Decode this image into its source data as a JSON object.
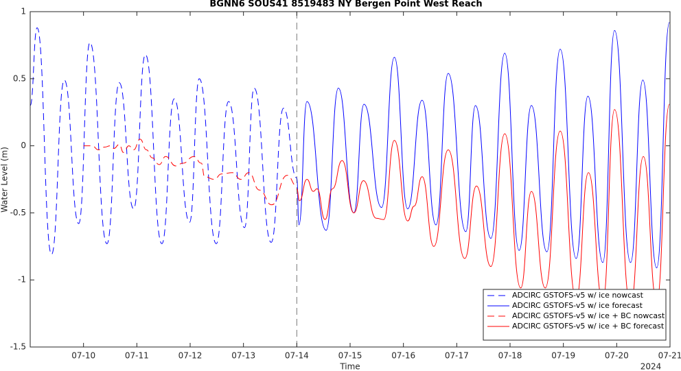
{
  "chart_data": {
    "type": "line",
    "title": "BGNN6 SOUS41 8519483 NY Bergen Point West Reach",
    "xlabel": "Time",
    "ylabel": "Water Level (m)",
    "x_annotation": "2024",
    "xlim": [
      9,
      21
    ],
    "ylim": [
      -1.5,
      1
    ],
    "xticks": [
      {
        "value": 10,
        "label": "07-10"
      },
      {
        "value": 11,
        "label": "07-11"
      },
      {
        "value": 12,
        "label": "07-12"
      },
      {
        "value": 13,
        "label": "07-13"
      },
      {
        "value": 14,
        "label": "07-14"
      },
      {
        "value": 15,
        "label": "07-15"
      },
      {
        "value": 16,
        "label": "07-16"
      },
      {
        "value": 17,
        "label": "07-17"
      },
      {
        "value": 18,
        "label": "07-18"
      },
      {
        "value": 19,
        "label": "07-19"
      },
      {
        "value": 20,
        "label": "07-20"
      },
      {
        "value": 21,
        "label": "07-21"
      }
    ],
    "yticks": [
      -1.5,
      -1,
      -0.5,
      0,
      0.5,
      1
    ],
    "vline_x": 14,
    "legend": "lower right",
    "grid": false,
    "series": [
      {
        "name": "ADCIRC GSTOFS-v5 w/ ice nowcast",
        "color": "#0000ff",
        "dashed": true,
        "x": [
          9.0,
          9.13,
          9.4,
          9.64,
          9.91,
          10.12,
          10.44,
          10.67,
          10.94,
          11.16,
          11.47,
          11.7,
          11.99,
          12.17,
          12.49,
          12.72,
          13.02,
          13.2,
          13.52,
          13.75,
          14.0
        ],
        "values": [
          0.3,
          0.88,
          -0.81,
          0.49,
          -0.58,
          0.77,
          -0.73,
          0.47,
          -0.47,
          0.68,
          -0.73,
          0.35,
          -0.57,
          0.5,
          -0.73,
          0.33,
          -0.61,
          0.43,
          -0.72,
          0.28,
          -0.24
        ]
      },
      {
        "name": "ADCIRC GSTOFS-v5 w/ ice forecast",
        "color": "#0000ff",
        "dashed": false,
        "x": [
          14.0,
          14.04,
          14.19,
          14.55,
          14.78,
          15.07,
          15.26,
          15.59,
          15.83,
          16.08,
          16.35,
          16.61,
          16.84,
          17.17,
          17.35,
          17.64,
          17.9,
          18.17,
          18.4,
          18.69,
          18.94,
          19.24,
          19.46,
          19.74,
          19.96,
          20.26,
          20.49,
          20.75,
          20.99
        ],
        "values": [
          -0.24,
          -0.59,
          0.33,
          -0.63,
          0.43,
          -0.5,
          0.31,
          -0.46,
          0.66,
          -0.47,
          0.34,
          -0.59,
          0.54,
          -0.64,
          0.3,
          -0.69,
          0.69,
          -0.78,
          0.3,
          -0.79,
          0.72,
          -0.84,
          0.37,
          -0.87,
          0.86,
          -0.87,
          0.49,
          -0.91,
          0.92
        ]
      },
      {
        "name": "ADCIRC GSTOFS-v5 w/ ice + BC nowcast",
        "color": "#ff0000",
        "dashed": true,
        "x": [
          10.0,
          10.16,
          10.28,
          10.39,
          10.51,
          10.57,
          10.67,
          10.75,
          10.85,
          10.94,
          11.06,
          11.18,
          11.29,
          11.42,
          11.54,
          11.73,
          11.86,
          12.07,
          12.21,
          12.27,
          12.45,
          12.59,
          12.79,
          12.95,
          13.1,
          13.3,
          13.53,
          13.82,
          14.0
        ],
        "values": [
          0,
          0,
          -0.03,
          -0.01,
          0,
          -0.02,
          0.01,
          -0.05,
          0,
          -0.03,
          0.05,
          -0.03,
          -0.09,
          -0.14,
          -0.08,
          -0.15,
          -0.13,
          -0.08,
          -0.13,
          -0.23,
          -0.25,
          -0.21,
          -0.2,
          -0.25,
          -0.2,
          -0.33,
          -0.44,
          -0.22,
          -0.3
        ]
      },
      {
        "name": "ADCIRC GSTOFS-v5 w/ ice + BC forecast",
        "color": "#ff0000",
        "dashed": false,
        "x": [
          14.0,
          14.05,
          14.19,
          14.31,
          14.38,
          14.53,
          14.67,
          14.85,
          15.07,
          15.25,
          15.49,
          15.63,
          15.83,
          16.08,
          16.2,
          16.35,
          16.57,
          16.84,
          17.15,
          17.37,
          17.64,
          17.9,
          18.2,
          18.4,
          18.66,
          18.94,
          19.24,
          19.47,
          19.74,
          19.96,
          20.26,
          20.5,
          20.75,
          20.99
        ],
        "values": [
          -0.32,
          -0.41,
          -0.25,
          -0.34,
          -0.32,
          -0.55,
          -0.32,
          -0.11,
          -0.5,
          -0.26,
          -0.54,
          -0.55,
          0.04,
          -0.56,
          -0.45,
          -0.23,
          -0.75,
          -0.03,
          -0.84,
          -0.3,
          -0.9,
          0.09,
          -1.06,
          -0.34,
          -1.06,
          0.11,
          -1.14,
          -0.2,
          -1.16,
          0.27,
          -1.19,
          -0.08,
          -1.16,
          0.31
        ]
      }
    ]
  }
}
